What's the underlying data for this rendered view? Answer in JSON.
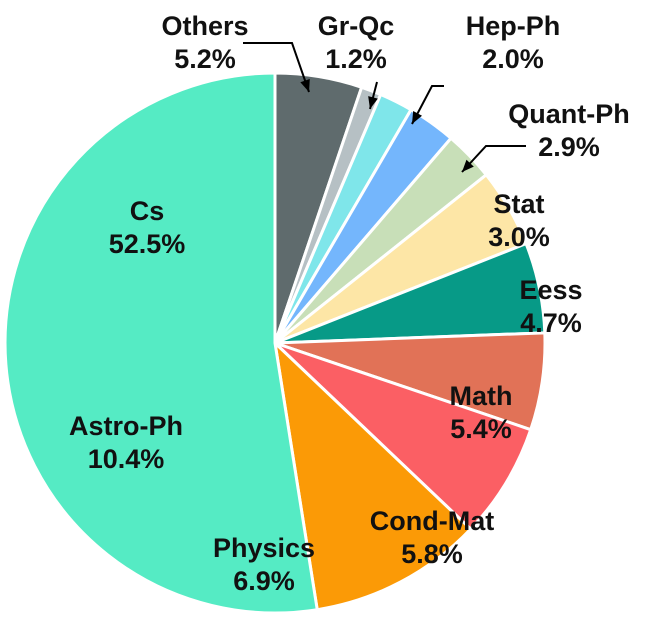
{
  "chart_data": {
    "type": "pie",
    "title": "",
    "start": "top",
    "direction": "clockwise",
    "slices": [
      {
        "name": "Others",
        "label": "Others",
        "pct_label": "5.2%",
        "value": 5.2,
        "color": "#5f6b6d"
      },
      {
        "name": "Gr-Qc",
        "label": "Gr-Qc",
        "pct_label": "1.2%",
        "value": 1.2,
        "color": "#b6c0c4"
      },
      {
        "name": "Hep-Ph",
        "label": "Hep-Ph",
        "pct_label": "2.0%",
        "value": 2.0,
        "color": "#7fe6ea"
      },
      {
        "name": "Quant-Ph",
        "label": "Quant-Ph",
        "pct_label": "2.9%",
        "value": 2.9,
        "color": "#74b6fc"
      },
      {
        "name": "Stat",
        "label": "Stat",
        "pct_label": "3.0%",
        "value": 3.0,
        "color": "#c8dfb8"
      },
      {
        "name": "Eess",
        "label": "Eess",
        "pct_label": "4.7%",
        "value": 4.7,
        "color": "#fde6a6"
      },
      {
        "name": "Math",
        "label": "Math",
        "pct_label": "5.4%",
        "value": 5.4,
        "color": "#079a87"
      },
      {
        "name": "Cond-Mat",
        "label": "Cond-Mat",
        "pct_label": "5.8%",
        "value": 5.8,
        "color": "#e17257"
      },
      {
        "name": "Physics",
        "label": "Physics",
        "pct_label": "6.9%",
        "value": 6.9,
        "color": "#fb5f64"
      },
      {
        "name": "Astro-Ph",
        "label": "Astro-Ph",
        "pct_label": "10.4%",
        "value": 10.4,
        "color": "#fb9a06"
      },
      {
        "name": "Cs",
        "label": "Cs",
        "pct_label": "52.5%",
        "value": 52.5,
        "color": "#55ebc4"
      }
    ]
  }
}
